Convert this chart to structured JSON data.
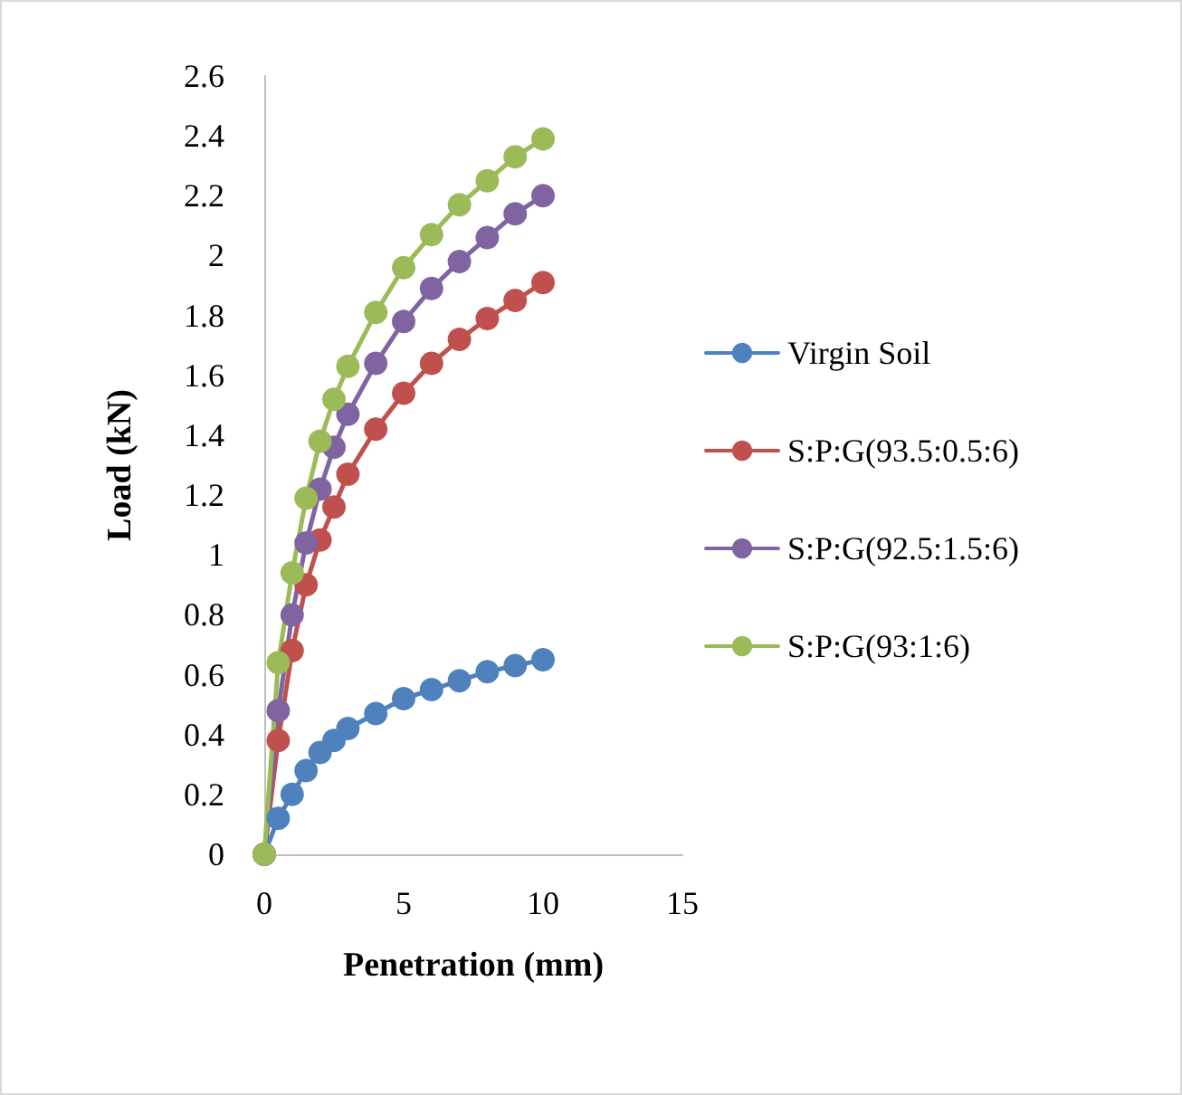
{
  "chart_data": {
    "type": "line",
    "xlabel": "Penetration (mm)",
    "ylabel": "Load (kN)",
    "x": [
      0,
      0.5,
      1,
      1.5,
      2,
      2.5,
      3,
      4,
      5,
      6,
      7,
      8,
      9,
      10
    ],
    "series": [
      {
        "name": "Virgin Soil",
        "color": "#4f81bd",
        "values": [
          0,
          0.12,
          0.2,
          0.28,
          0.34,
          0.38,
          0.42,
          0.47,
          0.52,
          0.55,
          0.58,
          0.61,
          0.63,
          0.65
        ]
      },
      {
        "name": "S:P:G(93.5:0.5:6)",
        "color": "#c0504d",
        "values": [
          0,
          0.38,
          0.68,
          0.9,
          1.05,
          1.16,
          1.27,
          1.42,
          1.54,
          1.64,
          1.72,
          1.79,
          1.85,
          1.91
        ]
      },
      {
        "name": "S:P:G(92.5:1.5:6)",
        "color": "#8064a2",
        "values": [
          0,
          0.48,
          0.8,
          1.04,
          1.22,
          1.36,
          1.47,
          1.64,
          1.78,
          1.89,
          1.98,
          2.06,
          2.14,
          2.2
        ]
      },
      {
        "name": "S:P:G(93:1:6)",
        "color": "#9bbb59",
        "values": [
          0,
          0.64,
          0.94,
          1.19,
          1.38,
          1.52,
          1.63,
          1.81,
          1.96,
          2.07,
          2.17,
          2.25,
          2.33,
          2.39
        ]
      }
    ],
    "xlim": [
      0,
      15
    ],
    "xticks": [
      0,
      5,
      10,
      15
    ],
    "ylim": [
      0,
      2.6
    ],
    "yticks": [
      0,
      0.2,
      0.4,
      0.6,
      0.8,
      1,
      1.2,
      1.4,
      1.6,
      1.8,
      2,
      2.2,
      2.4,
      2.6
    ],
    "grid": false,
    "legend": "right",
    "marker": "circle",
    "line_style": "solid"
  }
}
